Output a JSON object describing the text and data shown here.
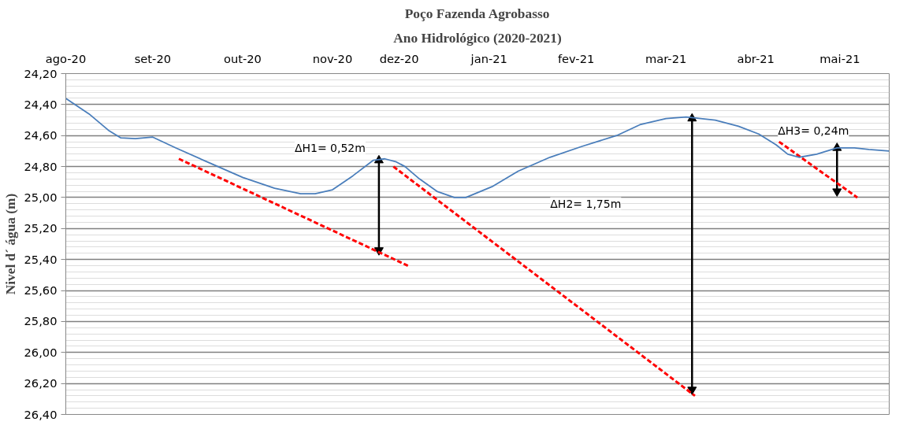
{
  "chart_data": {
    "type": "line",
    "title": "Poço Fazenda Agrobasso",
    "subtitle": "Ano Hidrológico (2020-2021)",
    "ylabel": "Nivel d´ água (m)",
    "xlim": [
      "2020-08-10",
      "2021-05-21"
    ],
    "xticks": [
      {
        "value": "2020-08-10",
        "label": "ago-20"
      },
      {
        "value": "2020-09-09",
        "label": "set-20"
      },
      {
        "value": "2020-10-10",
        "label": "out-20"
      },
      {
        "value": "2020-11-10",
        "label": "nov-20"
      },
      {
        "value": "2020-12-03",
        "label": "dez-20"
      },
      {
        "value": "2021-01-03",
        "label": "jan-21"
      },
      {
        "value": "2021-02-02",
        "label": "fev-21"
      },
      {
        "value": "2021-03-05",
        "label": "mar-21"
      },
      {
        "value": "2021-04-05",
        "label": "abr-21"
      },
      {
        "value": "2021-05-04",
        "label": "mai-21"
      }
    ],
    "ylim": [
      26.4,
      24.2
    ],
    "yticks": [
      {
        "value": 24.2,
        "label": "24,20"
      },
      {
        "value": 24.4,
        "label": "24,40"
      },
      {
        "value": 24.6,
        "label": "24,60"
      },
      {
        "value": 24.8,
        "label": "24,80"
      },
      {
        "value": 25.0,
        "label": "25,00"
      },
      {
        "value": 25.2,
        "label": "25,20"
      },
      {
        "value": 25.4,
        "label": "25,40"
      },
      {
        "value": 25.6,
        "label": "25,60"
      },
      {
        "value": 25.8,
        "label": "25,80"
      },
      {
        "value": 26.0,
        "label": "26,00"
      },
      {
        "value": 26.2,
        "label": "26,20"
      },
      {
        "value": 26.4,
        "label": "26,40"
      }
    ],
    "grid": "y",
    "series": [
      {
        "color": "#4a7ebb",
        "line_style": "solid",
        "x": [
          "2020-08-10",
          "2020-08-18",
          "2020-08-25",
          "2020-08-29",
          "2020-09-03",
          "2020-09-09",
          "2020-09-17",
          "2020-09-29",
          "2020-10-10",
          "2020-10-21",
          "2020-10-30",
          "2020-11-04",
          "2020-11-10",
          "2020-11-17",
          "2020-11-24",
          "2020-11-28",
          "2020-12-02",
          "2020-12-05",
          "2020-12-10",
          "2020-12-16",
          "2020-12-22",
          "2020-12-26",
          "2021-01-04",
          "2021-01-13",
          "2021-01-24",
          "2021-02-04",
          "2021-02-16",
          "2021-02-24",
          "2021-03-05",
          "2021-03-12",
          "2021-03-22",
          "2021-03-30",
          "2021-04-06",
          "2021-04-12",
          "2021-04-16",
          "2021-04-20",
          "2021-04-26",
          "2021-05-03",
          "2021-05-09",
          "2021-05-14",
          "2021-05-21"
        ],
        "values": [
          24.36,
          24.46,
          24.57,
          24.615,
          24.62,
          24.61,
          24.68,
          24.78,
          24.87,
          24.94,
          24.975,
          24.975,
          24.95,
          24.86,
          24.76,
          24.75,
          24.77,
          24.8,
          24.88,
          24.96,
          25.0,
          25.0,
          24.93,
          24.83,
          24.74,
          24.67,
          24.6,
          24.53,
          24.49,
          24.48,
          24.5,
          24.54,
          24.59,
          24.66,
          24.72,
          24.74,
          24.72,
          24.68,
          24.68,
          24.69,
          24.7
        ]
      },
      {
        "color": "#ff0000",
        "line_style": "dashed",
        "x": [
          "2020-09-18",
          "2020-12-06"
        ],
        "values": [
          24.75,
          25.44
        ]
      },
      {
        "color": "#ff0000",
        "line_style": "dashed",
        "x": [
          "2020-12-01",
          "2021-03-15"
        ],
        "values": [
          24.8,
          26.28
        ]
      },
      {
        "color": "#ff0000",
        "line_style": "dashed",
        "x": [
          "2021-04-13",
          "2021-05-10"
        ],
        "values": [
          24.64,
          25.0
        ]
      },
      {
        "color": "#000000",
        "line_style": "solid",
        "marker": "triangle",
        "x": [
          "2020-11-26",
          "2020-11-26"
        ],
        "values": [
          24.76,
          25.34
        ]
      },
      {
        "color": "#000000",
        "line_style": "solid",
        "marker": "triangle",
        "x": [
          "2021-03-14",
          "2021-03-14"
        ],
        "values": [
          24.49,
          26.24
        ]
      },
      {
        "color": "#000000",
        "line_style": "solid",
        "marker": "triangle",
        "x": [
          "2021-05-03",
          "2021-05-03"
        ],
        "values": [
          24.68,
          24.96
        ]
      }
    ],
    "annotations": [
      "ΔH1= 0,52m",
      "ΔH2= 1,75m",
      "ΔH3= 0,24m"
    ]
  }
}
